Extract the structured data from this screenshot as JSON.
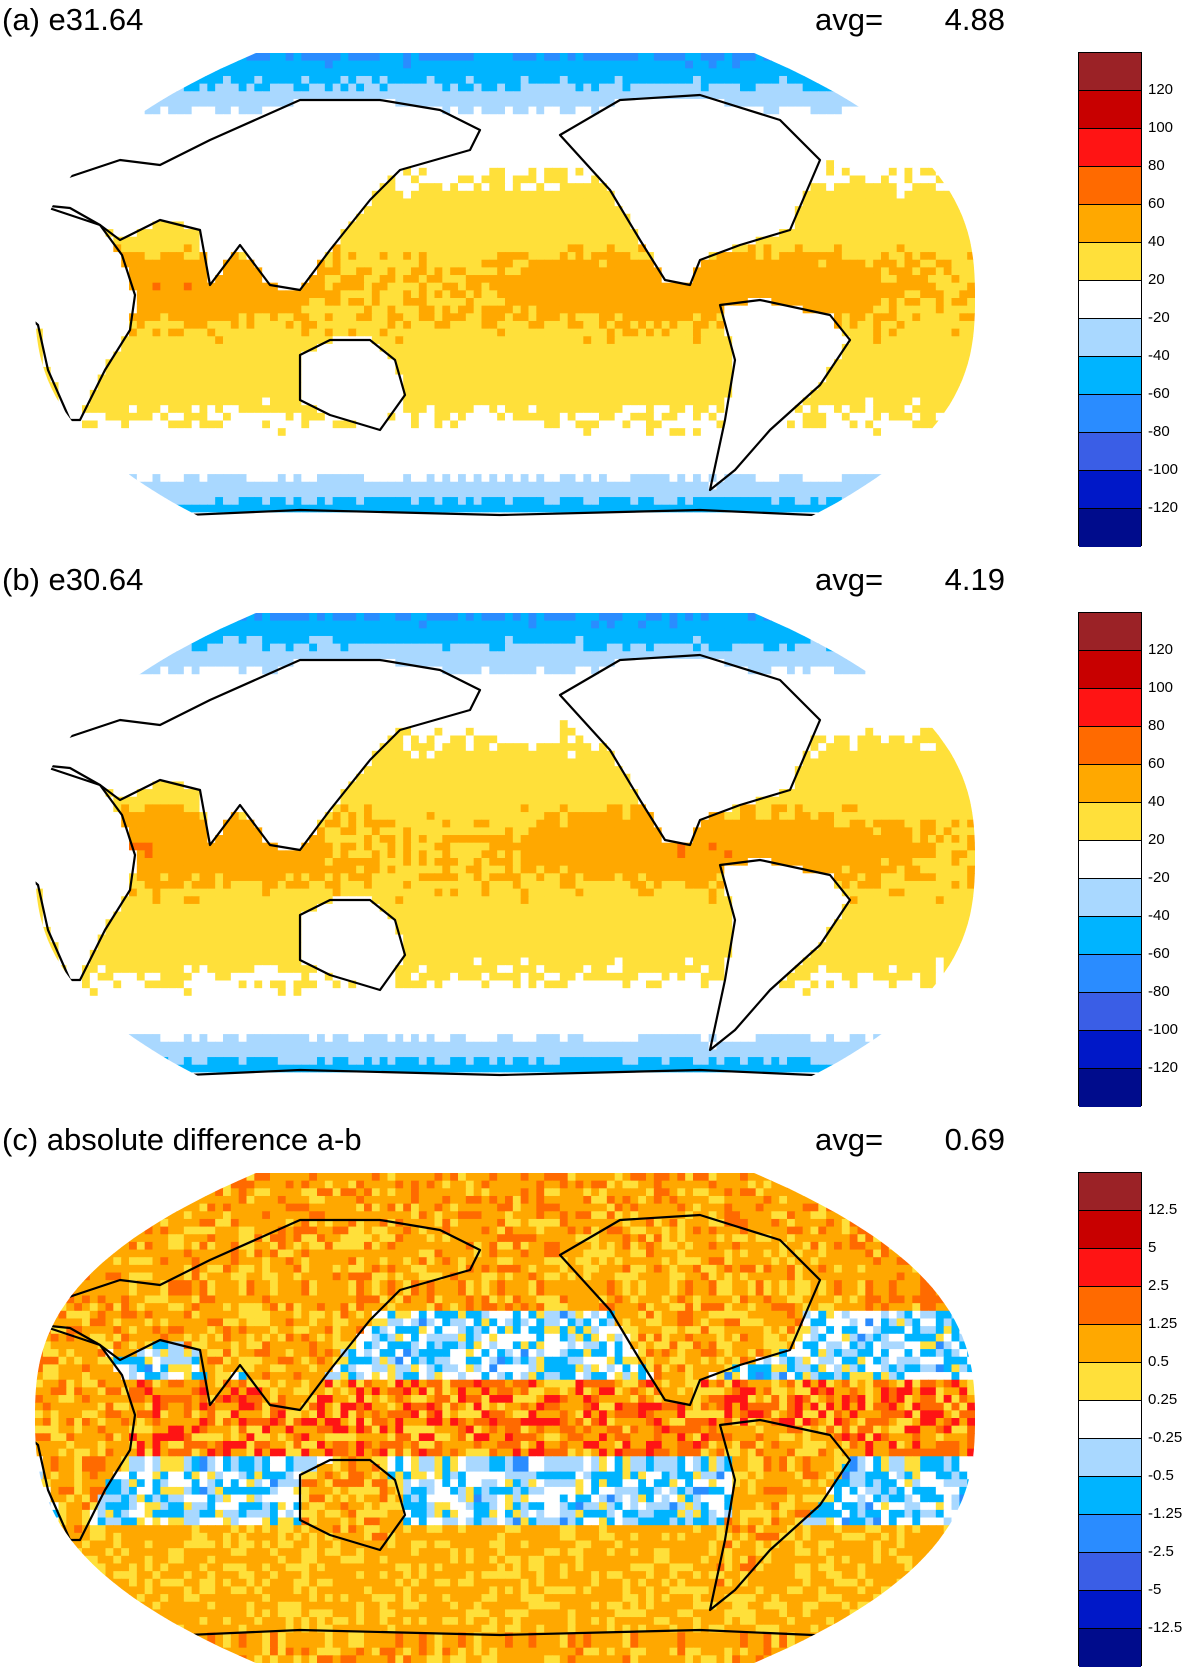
{
  "panels": [
    {
      "title": "(a) e31.64",
      "avg_label": "avg=",
      "avg_value": "4.88",
      "field": "a",
      "colorbar": {
        "labels": [
          "120",
          "100",
          "80",
          "60",
          "40",
          "20",
          "-20",
          "-40",
          "-60",
          "-80",
          "-100",
          "-120"
        ]
      }
    },
    {
      "title": "(b) e30.64",
      "avg_label": "avg=",
      "avg_value": "4.19",
      "field": "b",
      "colorbar": {
        "labels": [
          "120",
          "100",
          "80",
          "60",
          "40",
          "20",
          "-20",
          "-40",
          "-60",
          "-80",
          "-100",
          "-120"
        ]
      }
    },
    {
      "title": "(c) absolute difference a-b",
      "avg_label": "avg=",
      "avg_value": "0.69",
      "field": "diff",
      "colorbar": {
        "labels": [
          "12.5",
          "5",
          "2.5",
          "1.25",
          "0.5",
          "0.25",
          "-0.25",
          "-0.5",
          "-1.25",
          "-2.5",
          "-5",
          "-12.5"
        ]
      }
    }
  ],
  "palette": [
    "#9b2226",
    "#c80000",
    "#ff1414",
    "#ff6a00",
    "#ffa800",
    "#ffe03a",
    "#ffffff",
    "#a9d8ff",
    "#00b4ff",
    "#2a8cff",
    "#3a5ee6",
    "#0018c8",
    "#000c8c"
  ],
  "coastline_color": "#000000"
}
